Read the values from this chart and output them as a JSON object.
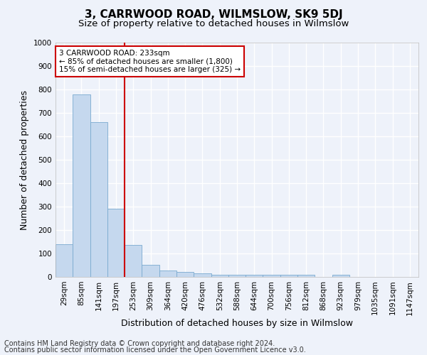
{
  "title": "3, CARRWOOD ROAD, WILMSLOW, SK9 5DJ",
  "subtitle": "Size of property relative to detached houses in Wilmslow",
  "xlabel": "Distribution of detached houses by size in Wilmslow",
  "ylabel": "Number of detached properties",
  "categories": [
    "29sqm",
    "85sqm",
    "141sqm",
    "197sqm",
    "253sqm",
    "309sqm",
    "364sqm",
    "420sqm",
    "476sqm",
    "532sqm",
    "588sqm",
    "644sqm",
    "700sqm",
    "756sqm",
    "812sqm",
    "868sqm",
    "923sqm",
    "979sqm",
    "1035sqm",
    "1091sqm",
    "1147sqm"
  ],
  "values": [
    140,
    780,
    660,
    290,
    135,
    52,
    28,
    20,
    14,
    8,
    8,
    8,
    10,
    8,
    8,
    0,
    8,
    0,
    0,
    0,
    0
  ],
  "bar_color": "#c5d8ee",
  "bar_edge_color": "#7aaad0",
  "ylim": [
    0,
    1000
  ],
  "yticks": [
    0,
    100,
    200,
    300,
    400,
    500,
    600,
    700,
    800,
    900,
    1000
  ],
  "vline_color": "#cc0000",
  "annotation_text": "3 CARRWOOD ROAD: 233sqm\n← 85% of detached houses are smaller (1,800)\n15% of semi-detached houses are larger (325) →",
  "annotation_box_color": "#ffffff",
  "annotation_box_edge": "#cc0000",
  "footnote1": "Contains HM Land Registry data © Crown copyright and database right 2024.",
  "footnote2": "Contains public sector information licensed under the Open Government Licence v3.0.",
  "background_color": "#eef2fa",
  "grid_color": "#ffffff",
  "title_fontsize": 11,
  "subtitle_fontsize": 9.5,
  "axis_label_fontsize": 9,
  "tick_fontsize": 7.5,
  "footnote_fontsize": 7,
  "ylabel_fontsize": 9
}
